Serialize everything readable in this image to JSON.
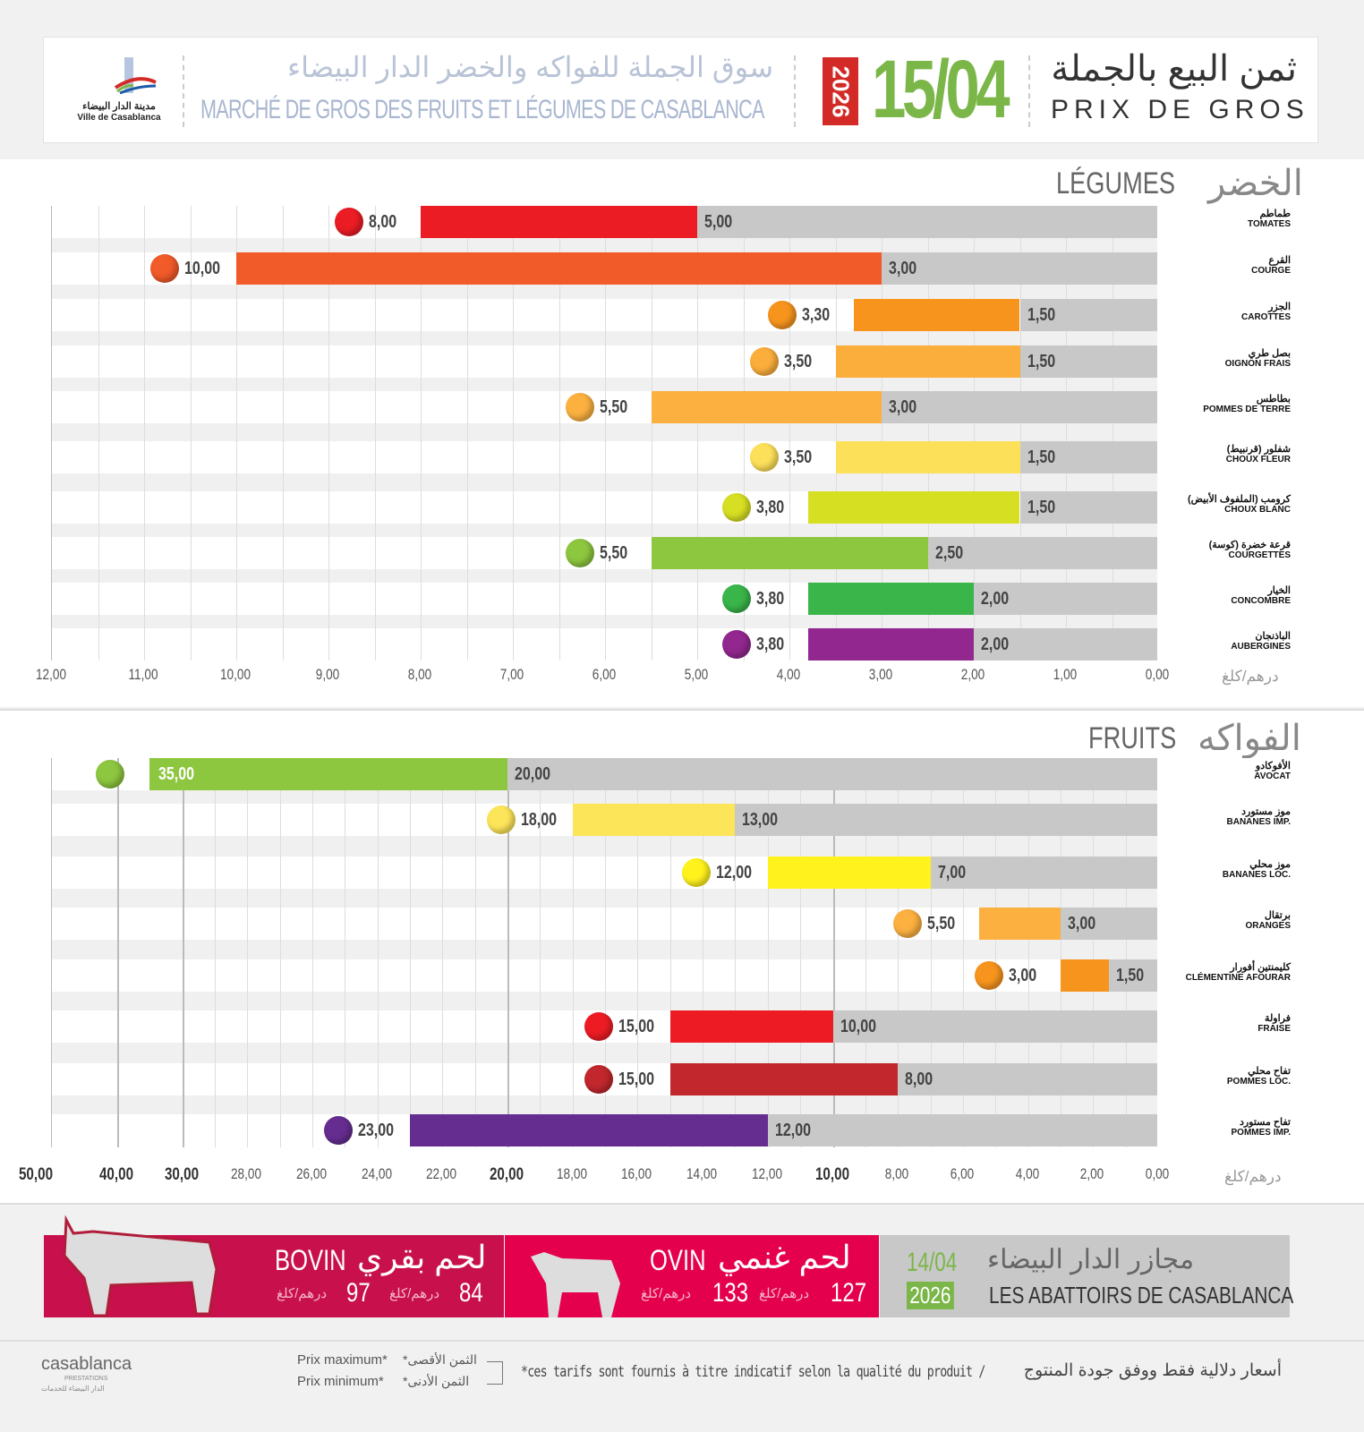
{
  "header": {
    "logo_ar": "مدينة الدار البيضاء",
    "logo_fr": "Ville de Casablanca",
    "title_ar": "سوق الجملة للفواكه والخضر الدار البيضاء",
    "title_fr": "MARCHÉ DE GROS DES FRUITS ET LÉGUMES DE CASABLANCA",
    "year": "2026",
    "date": "15/04",
    "price_ar": "ثمن البيع بالجملة",
    "price_fr": "PRIX DE GROS"
  },
  "chart_data": [
    {
      "type": "bar",
      "title": "LÉGUMES",
      "title_ar": "الخضر",
      "unit": "درهم/كلغ",
      "xlim": [
        0,
        12
      ],
      "ticks": [
        "12,00",
        "11,00",
        "10,00",
        "9,00",
        "8,00",
        "7,00",
        "6,00",
        "5,00",
        "4,00",
        "3,00",
        "2,00",
        "1,00",
        "0,00"
      ],
      "categories": [
        {
          "ar": "طماطم",
          "fr": "TOMATES",
          "min": 5.0,
          "max": 8.0,
          "min_label": "5,00",
          "max_label": "8,00",
          "color": "#ec1c24"
        },
        {
          "ar": "القرع",
          "fr": "COURGE",
          "min": 3.0,
          "max": 10.0,
          "min_label": "3,00",
          "max_label": "10,00",
          "color": "#f15a29"
        },
        {
          "ar": "الجزر",
          "fr": "CAROTTES",
          "min": 1.5,
          "max": 3.3,
          "min_label": "1,50",
          "max_label": "3,30",
          "color": "#f7941d"
        },
        {
          "ar": "بصل طري",
          "fr": "OIGNON FRAIS",
          "min": 1.5,
          "max": 3.5,
          "min_label": "1,50",
          "max_label": "3,50",
          "color": "#fbae3c"
        },
        {
          "ar": "بطاطس",
          "fr": "POMMES DE TERRE",
          "min": 3.0,
          "max": 5.5,
          "min_label": "3,00",
          "max_label": "5,50",
          "color": "#fbb040"
        },
        {
          "ar": "شفلور (قرنبيط)",
          "fr": "CHOUX FLEUR",
          "min": 1.5,
          "max": 3.5,
          "min_label": "1,50",
          "max_label": "3,50",
          "color": "#fde05a"
        },
        {
          "ar": "كرومب (الملفوف الأبيض)",
          "fr": "CHOUX BLANC",
          "min": 1.5,
          "max": 3.8,
          "min_label": "1,50",
          "max_label": "3,80",
          "color": "#d7df23"
        },
        {
          "ar": "قرعة خضرة (كوسة)",
          "fr": "COURGETTES",
          "min": 2.5,
          "max": 5.5,
          "min_label": "2,50",
          "max_label": "5,50",
          "color": "#8dc63f"
        },
        {
          "ar": "الخيار",
          "fr": "CONCOMBRE",
          "min": 2.0,
          "max": 3.8,
          "min_label": "2,00",
          "max_label": "3,80",
          "color": "#39b54a"
        },
        {
          "ar": "الباذنجان",
          "fr": "AUBERGINES",
          "min": 2.0,
          "max": 3.8,
          "min_label": "2,00",
          "max_label": "3,80",
          "color": "#92278f"
        }
      ]
    },
    {
      "type": "bar",
      "title": "FRUITS",
      "title_ar": "الفواكه",
      "unit": "درهم/كلغ",
      "xlim": [
        0,
        50
      ],
      "ticks": [
        {
          "v": 50,
          "l": "50,00"
        },
        {
          "v": 40,
          "l": "40,00"
        },
        {
          "v": 30,
          "l": "30,00"
        },
        {
          "v": 28,
          "l": "28,00"
        },
        {
          "v": 26,
          "l": "26,00"
        },
        {
          "v": 24,
          "l": "24,00"
        },
        {
          "v": 22,
          "l": "22,00"
        },
        {
          "v": 20,
          "l": "20,00"
        },
        {
          "v": 18,
          "l": "18,00"
        },
        {
          "v": 16,
          "l": "16,00"
        },
        {
          "v": 14,
          "l": "14,00"
        },
        {
          "v": 12,
          "l": "12,00"
        },
        {
          "v": 10,
          "l": "10,00"
        },
        {
          "v": 8,
          "l": "8,00"
        },
        {
          "v": 6,
          "l": "6,00"
        },
        {
          "v": 4,
          "l": "4,00"
        },
        {
          "v": 2,
          "l": "2,00"
        },
        {
          "v": 0,
          "l": "0,00"
        }
      ],
      "categories": [
        {
          "ar": "الأفوكادو",
          "fr": "AVOCAT",
          "min": 20.0,
          "max": 35.0,
          "min_label": "20,00",
          "max_label": "35,00",
          "color": "#8dc63f"
        },
        {
          "ar": "موز مستورد",
          "fr": "BANANES IMP.",
          "min": 13.0,
          "max": 18.0,
          "min_label": "13,00",
          "max_label": "18,00",
          "color": "#fde55a"
        },
        {
          "ar": "موز محلي",
          "fr": "BANANES LOC.",
          "min": 7.0,
          "max": 12.0,
          "min_label": "7,00",
          "max_label": "12,00",
          "color": "#fff21d"
        },
        {
          "ar": "برتقال",
          "fr": "ORANGES",
          "min": 3.0,
          "max": 5.5,
          "min_label": "3,00",
          "max_label": "5,50",
          "color": "#fbb040"
        },
        {
          "ar": "كليمنتين أفورار",
          "fr": "CLÉMENTINE AFOURAR",
          "min": 1.5,
          "max": 3.0,
          "min_label": "1,50",
          "max_label": "3,00",
          "color": "#f7941d"
        },
        {
          "ar": "فراولة",
          "fr": "FRAISE",
          "min": 10.0,
          "max": 15.0,
          "min_label": "10,00",
          "max_label": "15,00",
          "color": "#ed1c24"
        },
        {
          "ar": "تفاح محلي",
          "fr": "POMMES LOC.",
          "min": 8.0,
          "max": 15.0,
          "min_label": "8,00",
          "max_label": "15,00",
          "color": "#c1272d"
        },
        {
          "ar": "تفاح مستورد",
          "fr": "POMMES IMP.",
          "min": 12.0,
          "max": 23.0,
          "min_label": "12,00",
          "max_label": "23,00",
          "color": "#662d91"
        }
      ]
    }
  ],
  "meat": {
    "bovin_fr": "BOVIN",
    "bovin_ar": "لحم بقري",
    "bovin_max": "97",
    "bovin_min": "84",
    "ovin_fr": "OVIN",
    "ovin_ar": "لحم غنمي",
    "ovin_max": "133",
    "ovin_min": "127",
    "unit": "درهم/كلغ",
    "date": "14/04",
    "year": "2026",
    "abattoirs_ar": "مجازر الدار البيضاء",
    "abattoirs_fr": "LES ABATTOIRS DE CASABLANCA"
  },
  "footer": {
    "logo": "casablanca",
    "logo_sub": "PRESTATIONS",
    "logo_ar": "الدار البيضاء للخدمات",
    "max_fr": "Prix maximum*",
    "min_fr": "Prix minimum*",
    "max_ar": "*الثمن الأقصى",
    "min_ar": "*الثمن الأدنى",
    "note": "*ces tarifs sont fournis à titre indicatif selon la qualité du produit /",
    "note_ar": "أسعار دلالية فقط ووفق جودة المنتوج"
  }
}
